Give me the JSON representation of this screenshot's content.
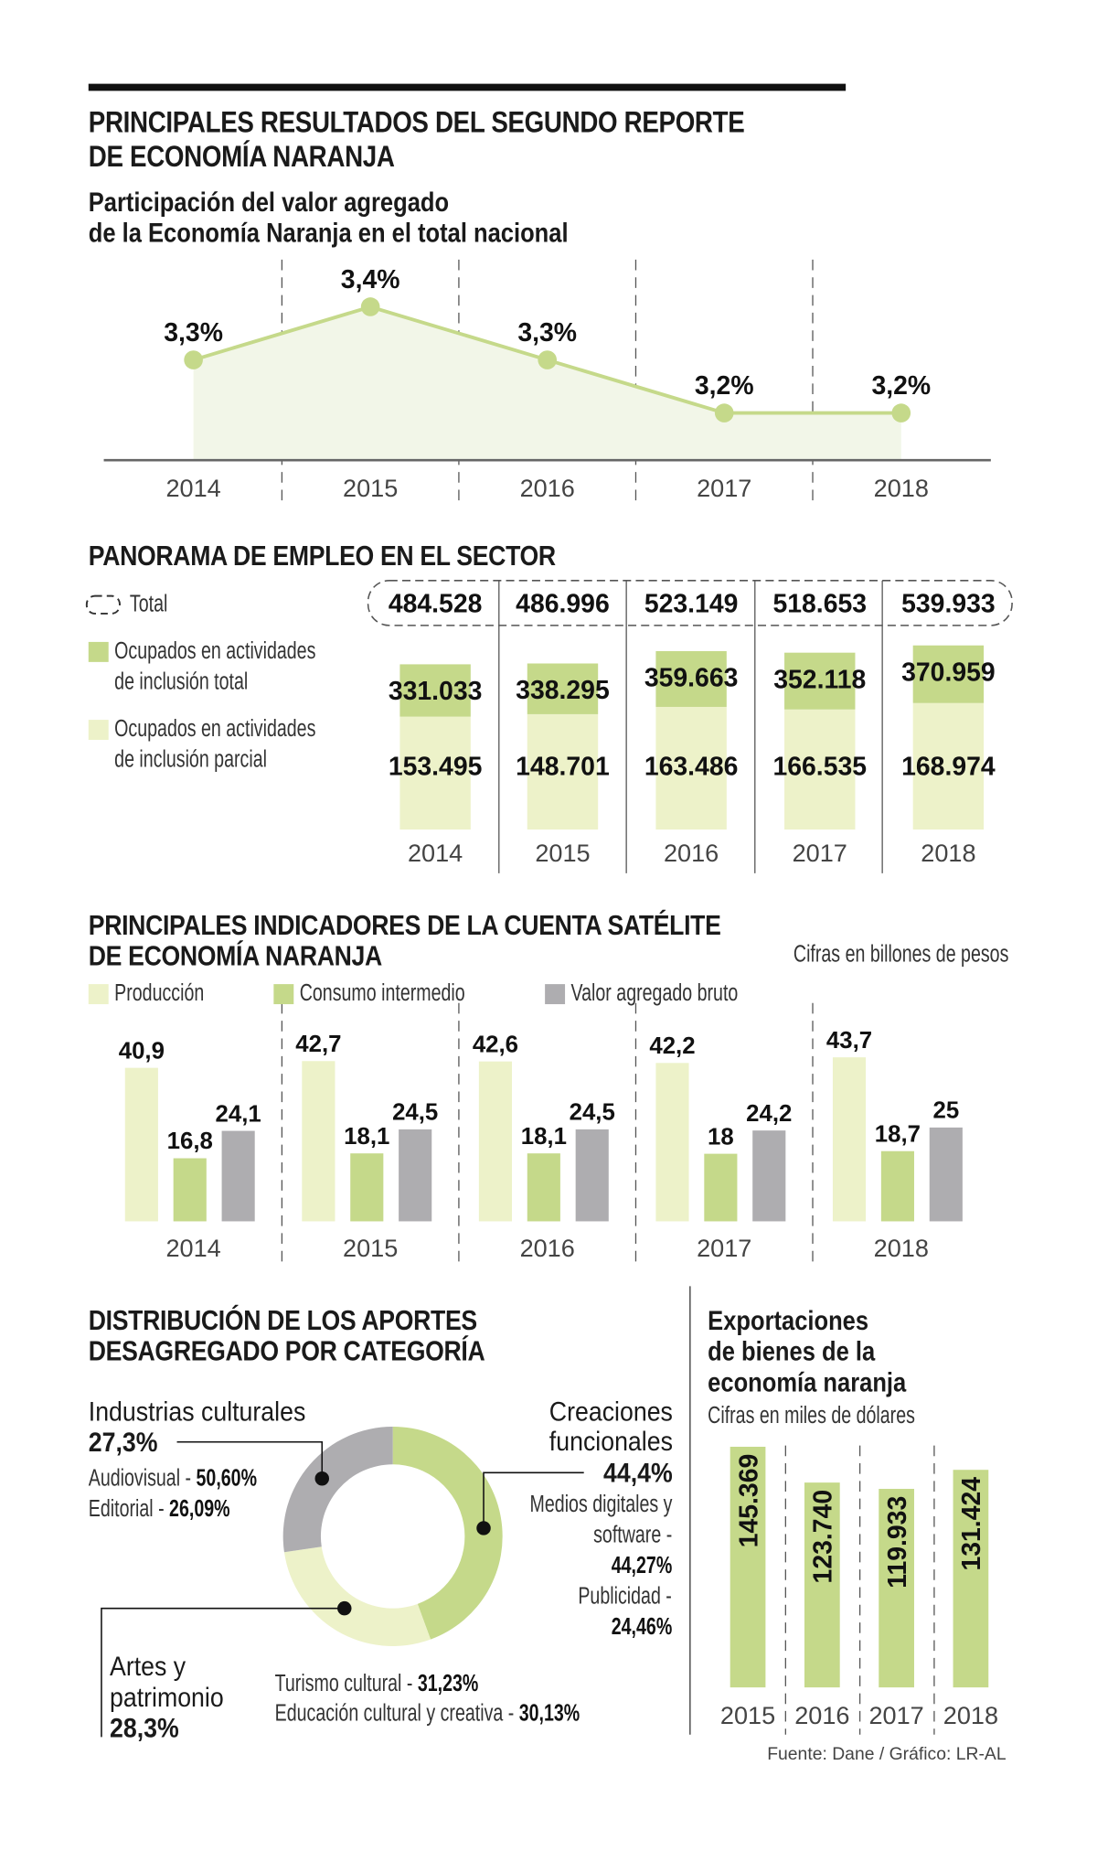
{
  "header": {
    "title_line1": "PRINCIPALES RESULTADOS DEL SEGUNDO REPORTE",
    "title_line2": "DE ECONOMÍA NARANJA"
  },
  "colors": {
    "green": "#c5d98a",
    "light_green": "#edf2c9",
    "grey": "#aeadb0",
    "area": "#f2f6e8"
  },
  "chart_data": [
    {
      "type": "line",
      "title_line1": "Participación del valor agregado",
      "title_line2": "de la Economía Naranja en el total nacional",
      "categories": [
        "2014",
        "2015",
        "2016",
        "2017",
        "2018"
      ],
      "values": [
        3.3,
        3.4,
        3.3,
        3.2,
        3.2
      ],
      "labels": [
        "3,3%",
        "3,4%",
        "3,3%",
        "3,2%",
        "3,2%"
      ],
      "ylabel": "%"
    },
    {
      "type": "bar",
      "stacked": true,
      "title": "PANORAMA DE EMPLEO EN EL SECTOR",
      "legend": {
        "total": "Total",
        "inclusion_total_line1": "Ocupados en actividades",
        "inclusion_total_line2": "de inclusión total",
        "inclusion_parcial_line1": "Ocupados en actividades",
        "inclusion_parcial_line2": "de inclusión parcial"
      },
      "categories": [
        "2014",
        "2015",
        "2016",
        "2017",
        "2018"
      ],
      "series": [
        {
          "name": "Total",
          "values": [
            484528,
            486996,
            523149,
            518653,
            539933
          ],
          "labels": [
            "484.528",
            "486.996",
            "523.149",
            "518.653",
            "539.933"
          ]
        },
        {
          "name": "Ocupados en actividades de inclusión total",
          "values": [
            331033,
            338295,
            359663,
            352118,
            370959
          ],
          "labels": [
            "331.033",
            "338.295",
            "359.663",
            "352.118",
            "370.959"
          ]
        },
        {
          "name": "Ocupados en actividades de inclusión parcial",
          "values": [
            153495,
            148701,
            163486,
            166535,
            168974
          ],
          "labels": [
            "153.495",
            "148.701",
            "163.486",
            "166.535",
            "168.974"
          ]
        }
      ]
    },
    {
      "type": "bar",
      "title_line1": "PRINCIPALES INDICADORES DE LA CUENTA SATÉLITE",
      "title_line2": "DE ECONOMÍA NARANJA",
      "unit_note": "Cifras en billones de pesos",
      "categories": [
        "2014",
        "2015",
        "2016",
        "2017",
        "2018"
      ],
      "series": [
        {
          "name": "Producción",
          "values": [
            40.9,
            42.7,
            42.6,
            42.2,
            43.7
          ],
          "labels": [
            "40,9",
            "42,7",
            "42,6",
            "42,2",
            "43,7"
          ]
        },
        {
          "name": "Consumo intermedio",
          "values": [
            16.8,
            18.1,
            18.1,
            18,
            18.7
          ],
          "labels": [
            "16,8",
            "18,1",
            "18,1",
            "18",
            "18,7"
          ]
        },
        {
          "name": "Valor agregado bruto",
          "values": [
            24.1,
            24.5,
            24.5,
            24.2,
            25
          ],
          "labels": [
            "24,1",
            "24,5",
            "24,5",
            "24,2",
            "25"
          ]
        }
      ]
    },
    {
      "type": "pie",
      "title_line1": "DISTRIBUCIÓN DE LOS APORTES",
      "title_line2": "DESAGREGADO POR CATEGORÍA",
      "slices": [
        {
          "name_line1": "Creaciones",
          "name_line2": "funcionales",
          "value": 44.4,
          "label": "44,4%",
          "details": [
            {
              "line1": "Medios digitales y",
              "line2": "software -",
              "value": "44,27%"
            },
            {
              "line1": "Publicidad -",
              "value": "24,46%"
            }
          ]
        },
        {
          "name_line1": "Artes y",
          "name_line2": "patrimonio",
          "value": 28.3,
          "label": "28,3%",
          "details": [
            {
              "name": "Turismo cultural - ",
              "value": "31,23%"
            },
            {
              "name": "Educación cultural y creativa - ",
              "value": "30,13%"
            }
          ]
        },
        {
          "name": "Industrias culturales",
          "value": 27.3,
          "label": "27,3%",
          "details": [
            {
              "name": "Audiovisual - ",
              "value": "50,60%"
            },
            {
              "name": "Editorial - ",
              "value": "26,09%"
            }
          ]
        }
      ]
    },
    {
      "type": "bar",
      "title_line1": "Exportaciones",
      "title_line2": "de bienes de la",
      "title_line3": "economía naranja",
      "unit_note": "Cifras en miles de dólares",
      "categories": [
        "2015",
        "2016",
        "2017",
        "2018"
      ],
      "values": [
        145.369,
        123.74,
        119.933,
        131.424
      ],
      "labels": [
        "145.369",
        "123.740",
        "119.933",
        "131.424"
      ]
    }
  ],
  "source": "Fuente: Dane / Gráfico: LR-AL"
}
